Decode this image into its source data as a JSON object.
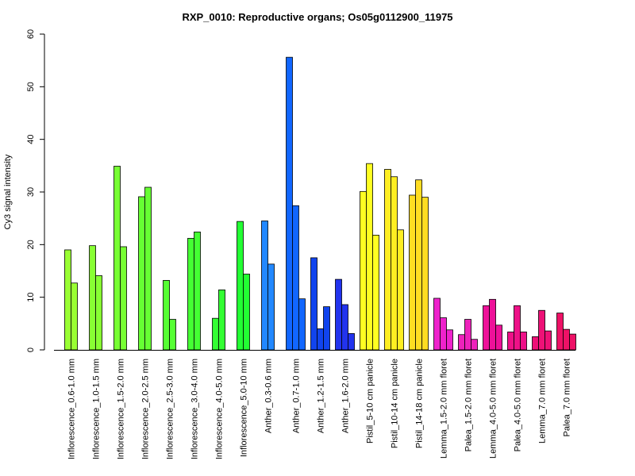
{
  "chart_data": {
    "type": "bar",
    "title": "RXP_0010: Reproductive organs; Os05g0112900_11975",
    "xlabel": "",
    "ylabel": "Cy3 signal intensity",
    "ylim": [
      0,
      60
    ],
    "yticks": [
      0,
      10,
      20,
      30,
      40,
      50,
      60
    ],
    "grid": false,
    "legend": "none",
    "categories": [
      "Inflorescence_0.6-1.0 mm",
      "Inflorescence_1.0-1.5 mm",
      "Inflorescence_1.5-2.0 mm",
      "Inflorescence_2.0-2.5 mm",
      "Inflorescence_2.5-3.0 mm",
      "Inflorescence_3.0-4.0 mm",
      "Inflorescence_4.0-5.0 mm",
      "Inflorescence_5.0-10 mm",
      "Anther_0.3-0.6 mm",
      "Anther_0.7-1.0 mm",
      "Anther_1.2-1.5 mm",
      "Anther_1.6-2.0 mm",
      "Pistil_5-10 cm panicle",
      "Pistil_10-14 cm panicle",
      "Pistil_14-18 cm panicle",
      "Lemma_1.5-2.0 mm floret",
      "Palea_1.5-2.0 mm floret",
      "Lemma_4.0-5.0 mm floret",
      "Palea_4.0-5.0 mm floret",
      "Lemma_7.0 mm floret",
      "Palea_7.0 mm floret"
    ],
    "groups": [
      {
        "values": [
          19.0,
          12.7
        ],
        "color": "#99FF33"
      },
      {
        "values": [
          19.8,
          14.1
        ],
        "color": "#88FF33"
      },
      {
        "values": [
          34.9,
          19.6
        ],
        "color": "#77FF33"
      },
      {
        "values": [
          29.1,
          30.9
        ],
        "color": "#66FF33"
      },
      {
        "values": [
          13.2,
          5.8
        ],
        "color": "#55FF33"
      },
      {
        "values": [
          21.2,
          22.4
        ],
        "color": "#44FF33"
      },
      {
        "values": [
          6.0,
          11.4
        ],
        "color": "#33FF33"
      },
      {
        "values": [
          24.4,
          14.4
        ],
        "color": "#22FF33"
      },
      {
        "values": [
          24.5,
          16.3
        ],
        "color": "#2288FF"
      },
      {
        "values": [
          55.6,
          27.4,
          9.7
        ],
        "color": "#1166FF"
      },
      {
        "values": [
          17.5,
          4.0,
          8.2
        ],
        "color": "#1144EE"
      },
      {
        "values": [
          13.4,
          8.6,
          3.1
        ],
        "color": "#2233EE"
      },
      {
        "values": [
          30.1,
          35.4,
          21.8
        ],
        "color": "#FFFF22"
      },
      {
        "values": [
          34.3,
          32.9,
          22.8
        ],
        "color": "#FFEE22"
      },
      {
        "values": [
          29.4,
          32.3,
          29.0
        ],
        "color": "#FFDD22"
      },
      {
        "values": [
          9.8,
          6.1,
          3.8
        ],
        "color": "#EE22CC"
      },
      {
        "values": [
          2.9,
          5.8,
          2.0
        ],
        "color": "#EE22BB"
      },
      {
        "values": [
          8.4,
          9.6,
          4.7
        ],
        "color": "#EE1199"
      },
      {
        "values": [
          3.4,
          8.4,
          3.4
        ],
        "color": "#EE1188"
      },
      {
        "values": [
          2.5,
          7.5,
          3.6
        ],
        "color": "#EE1177"
      },
      {
        "values": [
          7.0,
          3.9,
          3.0
        ],
        "color": "#EE1166"
      }
    ]
  }
}
